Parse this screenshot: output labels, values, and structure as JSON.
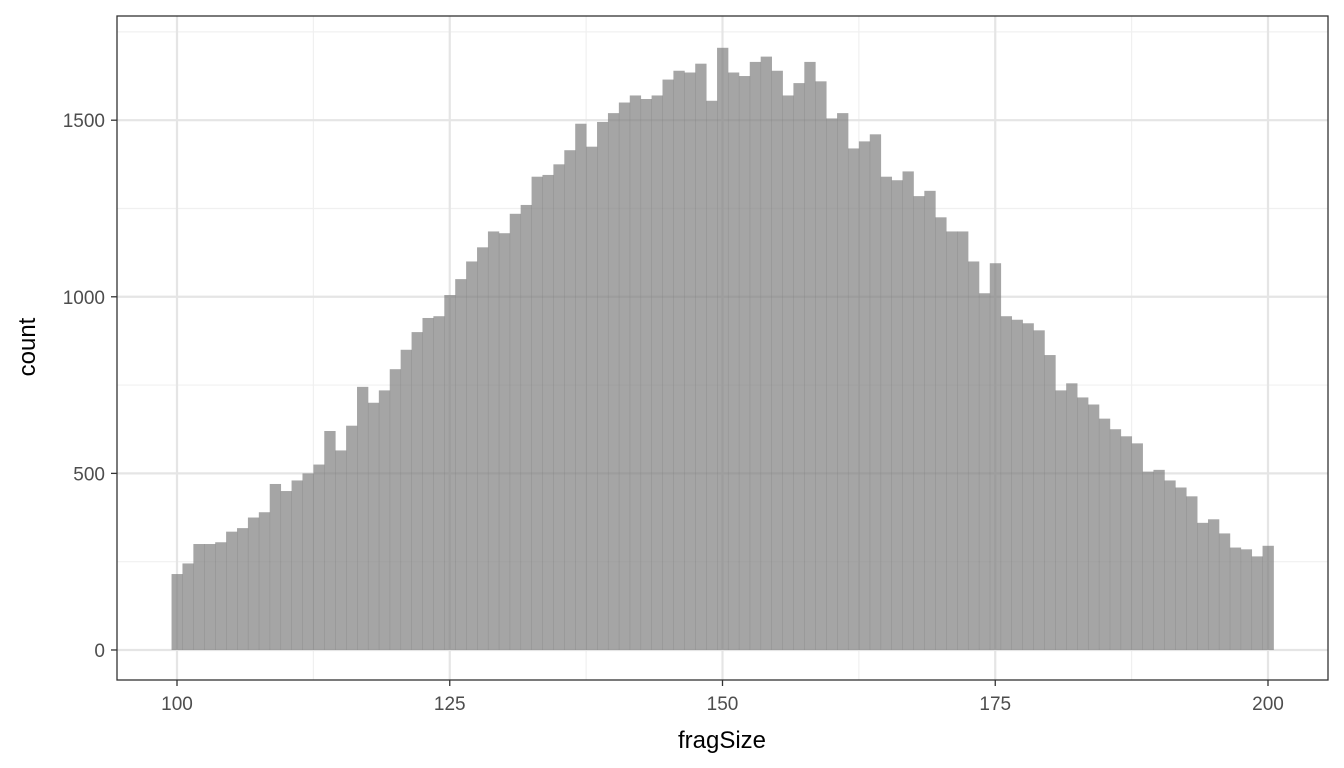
{
  "chart_data": {
    "type": "bar",
    "subtype": "histogram",
    "title": "",
    "xlabel": "fragSize",
    "ylabel": "count",
    "xlim": [
      94.5,
      205.5
    ],
    "ylim": [
      -85,
      1795
    ],
    "x_ticks": [
      100,
      125,
      150,
      175,
      200
    ],
    "y_ticks": [
      0,
      500,
      1000,
      1500
    ],
    "grid": true,
    "legend": "none",
    "bin_width": 1,
    "x": [
      100,
      101,
      102,
      103,
      104,
      105,
      106,
      107,
      108,
      109,
      110,
      111,
      112,
      113,
      114,
      115,
      116,
      117,
      118,
      119,
      120,
      121,
      122,
      123,
      124,
      125,
      126,
      127,
      128,
      129,
      130,
      131,
      132,
      133,
      134,
      135,
      136,
      137,
      138,
      139,
      140,
      141,
      142,
      143,
      144,
      145,
      146,
      147,
      148,
      149,
      150,
      151,
      152,
      153,
      154,
      155,
      156,
      157,
      158,
      159,
      160,
      161,
      162,
      163,
      164,
      165,
      166,
      167,
      168,
      169,
      170,
      171,
      172,
      173,
      174,
      175,
      176,
      177,
      178,
      179,
      180,
      181,
      182,
      183,
      184,
      185,
      186,
      187,
      188,
      189,
      190,
      191,
      192,
      193,
      194,
      195,
      196,
      197,
      198,
      199,
      200
    ],
    "values": [
      215,
      245,
      300,
      300,
      305,
      335,
      345,
      375,
      390,
      470,
      450,
      480,
      500,
      525,
      620,
      565,
      635,
      745,
      700,
      735,
      795,
      850,
      900,
      940,
      945,
      1005,
      1050,
      1100,
      1140,
      1185,
      1180,
      1235,
      1260,
      1340,
      1345,
      1375,
      1415,
      1490,
      1425,
      1495,
      1520,
      1550,
      1570,
      1560,
      1570,
      1615,
      1640,
      1635,
      1660,
      1555,
      1705,
      1635,
      1625,
      1665,
      1680,
      1640,
      1570,
      1605,
      1665,
      1610,
      1505,
      1520,
      1420,
      1440,
      1460,
      1340,
      1330,
      1355,
      1285,
      1300,
      1225,
      1185,
      1185,
      1100,
      1010,
      1095,
      945,
      935,
      925,
      905,
      835,
      735,
      755,
      715,
      695,
      655,
      625,
      605,
      585,
      505,
      510,
      480,
      460,
      435,
      360,
      370,
      330,
      290,
      285,
      265,
      295
    ],
    "colors": {
      "bar_fill": "#a6a6a6",
      "grid_major": "#e5e5e5",
      "grid_minor": "#f0f0f0",
      "panel_border": "#333333",
      "tick_label": "#4d4d4d",
      "axis_title": "#000000"
    }
  }
}
